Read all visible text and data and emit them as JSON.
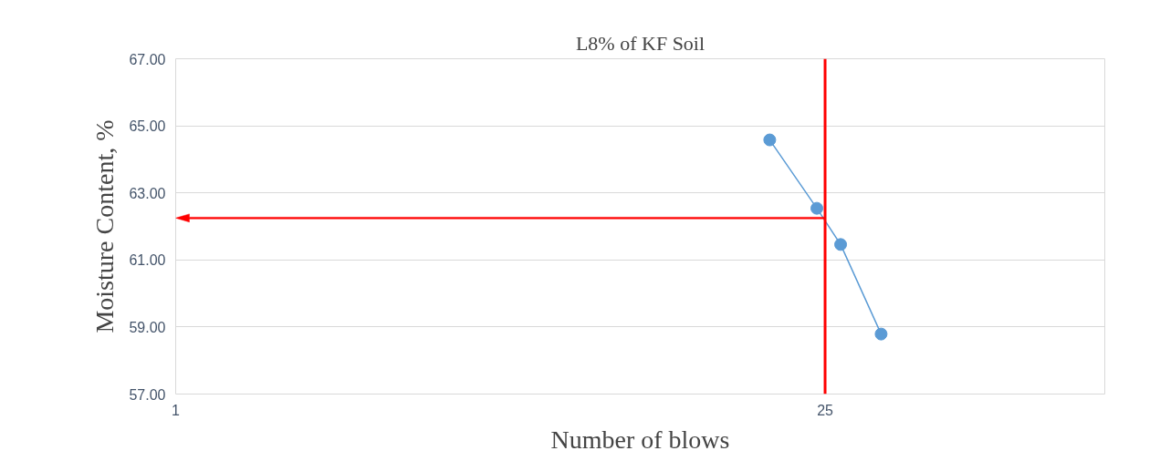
{
  "chart_data": {
    "type": "line",
    "title": "L8% of KF Soil",
    "xlabel": "Number of blows",
    "ylabel": "Moisture Content, %",
    "x": [
      19,
      24,
      27,
      33
    ],
    "series": [
      {
        "color": "#5b9bd5",
        "values": [
          64.58,
          62.54,
          61.46,
          58.79
        ]
      }
    ],
    "log": "x",
    "xlim": [
      1,
      100
    ],
    "xticks": [
      1,
      25
    ],
    "ylim": [
      57,
      67
    ],
    "yticks": [
      {
        "value": 57,
        "label": "57.00"
      },
      {
        "value": 59,
        "label": "59.00"
      },
      {
        "value": 61,
        "label": "61.00"
      },
      {
        "value": 63,
        "label": "63.00"
      },
      {
        "value": 65,
        "label": "65.00"
      },
      {
        "value": 67,
        "label": "67.00"
      }
    ],
    "grid": "y",
    "marker": "circle",
    "line_style": "solid",
    "ref_lines": [
      {
        "axis": "x",
        "value": 25,
        "color": "#ff0000",
        "line_style": "solid"
      },
      {
        "axis": "y",
        "value": 62.25,
        "color": "#ff0000",
        "line_style": "solid"
      }
    ]
  }
}
